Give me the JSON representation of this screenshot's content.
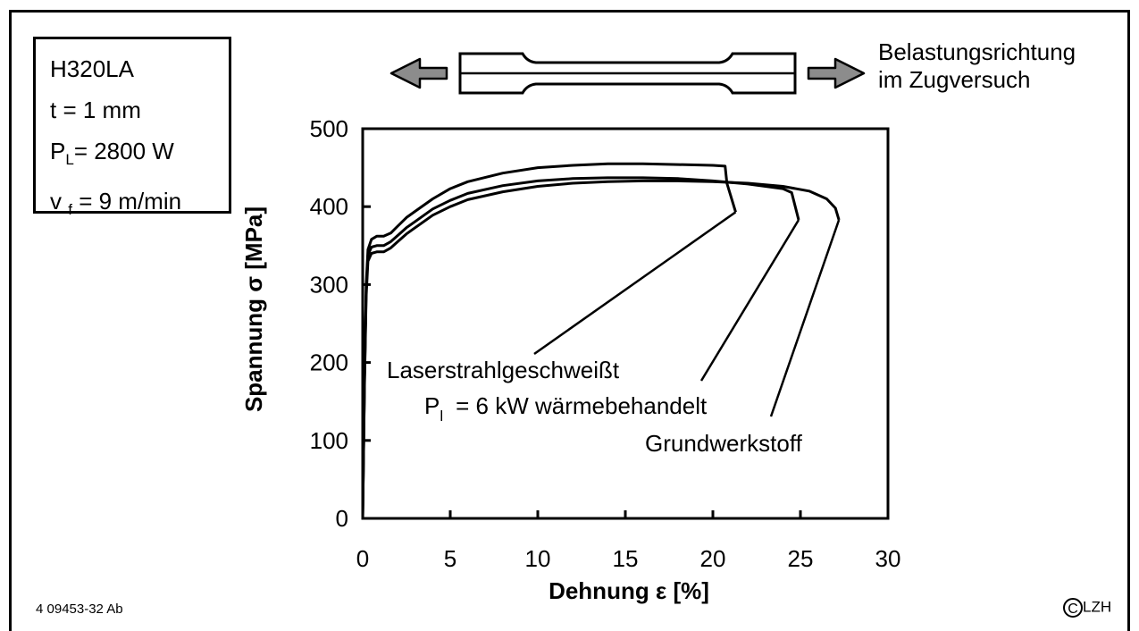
{
  "params": {
    "material": "H320LA",
    "thickness": "t = 1 mm",
    "laser_power_base": "P",
    "laser_power_sub": "L",
    "laser_power_value": "= 2800 W",
    "feed_base": "v",
    "feed_sub": "f",
    "feed_value": " = 9 m/min"
  },
  "direction": {
    "line1": "Belastungsrichtung",
    "line2": "im Zugversuch"
  },
  "figure_id": "4 09453-32 Ab",
  "copyright": {
    "symbol": "C",
    "text": "LZH"
  },
  "chart_data": {
    "type": "line",
    "xlabel": "Dehnung ε [%]",
    "ylabel": "Spannung σ [MPa]",
    "xlim": [
      0,
      30
    ],
    "ylim": [
      0,
      500
    ],
    "xticks": [
      0,
      5,
      10,
      15,
      20,
      25,
      30
    ],
    "yticks": [
      0,
      100,
      200,
      300,
      400,
      500
    ],
    "grid": false,
    "series": [
      {
        "name": "Laserstrahlgeschweißt",
        "color": "#000000",
        "x": [
          0,
          0.1,
          0.2,
          0.3,
          0.5,
          0.8,
          1.2,
          1.6,
          2.0,
          2.5,
          3.0,
          4.0,
          5.0,
          6.0,
          8.0,
          10.0,
          12.0,
          14.0,
          16.0,
          18.0,
          20.0,
          20.7,
          20.8,
          21.3
        ],
        "y": [
          0,
          180,
          300,
          345,
          358,
          362,
          362,
          366,
          375,
          386,
          394,
          410,
          423,
          432,
          443,
          450,
          453,
          455,
          455,
          454,
          453,
          452,
          430,
          393
        ]
      },
      {
        "name": "wärmebehandelt",
        "color": "#000000",
        "x": [
          0,
          0.1,
          0.2,
          0.3,
          0.5,
          0.8,
          1.2,
          1.6,
          2.0,
          2.5,
          3.0,
          4.0,
          5.0,
          6.0,
          8.0,
          10.0,
          12.0,
          14.0,
          16.0,
          18.0,
          20.0,
          22.0,
          24.0,
          24.5,
          24.9
        ],
        "y": [
          0,
          175,
          292,
          338,
          348,
          350,
          350,
          355,
          363,
          373,
          381,
          397,
          408,
          417,
          427,
          433,
          436,
          437,
          437,
          436,
          433,
          429,
          423,
          418,
          383
        ]
      },
      {
        "name": "Grundwerkstoff",
        "color": "#000000",
        "x": [
          0,
          0.1,
          0.2,
          0.3,
          0.5,
          0.8,
          1.2,
          1.6,
          2.0,
          2.5,
          3.0,
          4.0,
          5.0,
          6.0,
          8.0,
          10.0,
          12.0,
          14.0,
          16.0,
          18.0,
          20.0,
          22.0,
          24.0,
          25.5,
          26.5,
          27.0,
          27.2
        ],
        "y": [
          0,
          170,
          285,
          330,
          340,
          342,
          342,
          347,
          355,
          365,
          373,
          389,
          400,
          409,
          419,
          426,
          430,
          432,
          433,
          433,
          432,
          430,
          426,
          420,
          410,
          398,
          383
        ]
      }
    ],
    "annotations": [
      {
        "text": "Laserstrahlgeschweißt",
        "series": 0
      },
      {
        "text_base": "P",
        "text_sub": "l",
        "text_rest": "= 6 kW wärmebehandelt",
        "series": 1
      },
      {
        "text": "Grundwerkstoff",
        "series": 2
      }
    ]
  }
}
